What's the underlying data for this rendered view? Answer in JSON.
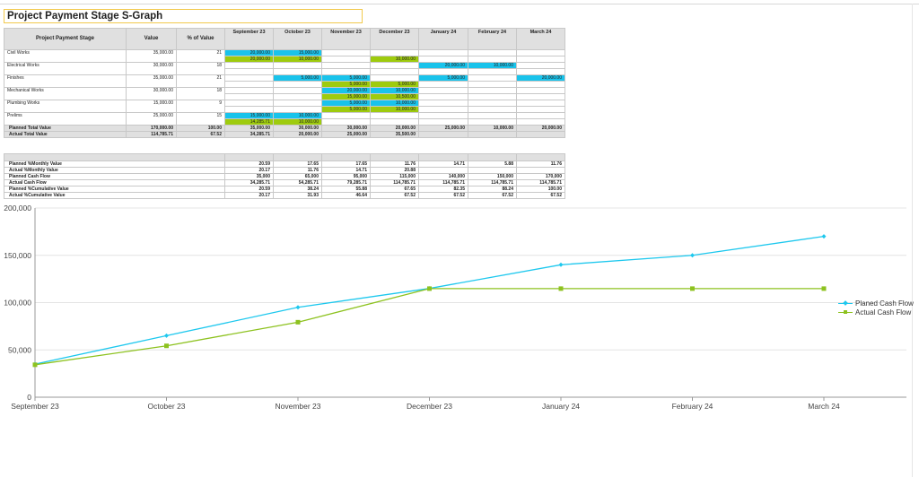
{
  "title": "Project Payment Stage S-Graph",
  "table": {
    "headers": {
      "stage": "Project Payment Stage",
      "value": "Value",
      "percent": "% of Value"
    },
    "months": [
      "September 23",
      "October 23",
      "November 23",
      "December 23",
      "January 24",
      "February 24",
      "March 24"
    ],
    "rows": [
      {
        "name": "Civil Works",
        "value": "35,000.00",
        "percent": "21",
        "planned": [
          {
            "c": "c",
            "t": "20,000.00"
          },
          {
            "c": "c",
            "t": "15,000.00"
          },
          {
            "c": "",
            "t": ""
          },
          {
            "c": "",
            "t": ""
          },
          {
            "c": "",
            "t": ""
          },
          {
            "c": "",
            "t": ""
          },
          {
            "c": "",
            "t": ""
          }
        ],
        "actual": [
          {
            "c": "g",
            "t": "20,000.00"
          },
          {
            "c": "g",
            "t": "10,000.00"
          },
          {
            "c": "",
            "t": ""
          },
          {
            "c": "g",
            "t": "10,000.00"
          },
          {
            "c": "",
            "t": ""
          },
          {
            "c": "",
            "t": ""
          },
          {
            "c": "",
            "t": ""
          }
        ]
      },
      {
        "name": "Electrical Works",
        "value": "30,000.00",
        "percent": "18",
        "planned": [
          {
            "c": "",
            "t": ""
          },
          {
            "c": "",
            "t": ""
          },
          {
            "c": "",
            "t": ""
          },
          {
            "c": "",
            "t": ""
          },
          {
            "c": "c",
            "t": "20,000.00"
          },
          {
            "c": "c",
            "t": "10,000.00"
          },
          {
            "c": "",
            "t": ""
          }
        ],
        "actual": [
          {
            "c": "",
            "t": ""
          },
          {
            "c": "",
            "t": ""
          },
          {
            "c": "",
            "t": ""
          },
          {
            "c": "",
            "t": ""
          },
          {
            "c": "",
            "t": ""
          },
          {
            "c": "",
            "t": ""
          },
          {
            "c": "",
            "t": ""
          }
        ]
      },
      {
        "name": "Finishes",
        "value": "35,000.00",
        "percent": "21",
        "planned": [
          {
            "c": "",
            "t": ""
          },
          {
            "c": "c",
            "t": "5,000.00"
          },
          {
            "c": "c",
            "t": "5,000.00"
          },
          {
            "c": "",
            "t": ""
          },
          {
            "c": "c",
            "t": "5,000.00"
          },
          {
            "c": "",
            "t": ""
          },
          {
            "c": "c",
            "t": "20,000.00"
          }
        ],
        "actual": [
          {
            "c": "",
            "t": ""
          },
          {
            "c": "",
            "t": ""
          },
          {
            "c": "g",
            "t": "5,000.00"
          },
          {
            "c": "g",
            "t": "5,000.00"
          },
          {
            "c": "",
            "t": ""
          },
          {
            "c": "",
            "t": ""
          },
          {
            "c": "",
            "t": ""
          }
        ]
      },
      {
        "name": "Mechanical Works",
        "value": "30,000.00",
        "percent": "18",
        "planned": [
          {
            "c": "",
            "t": ""
          },
          {
            "c": "",
            "t": ""
          },
          {
            "c": "c",
            "t": "20,000.00"
          },
          {
            "c": "c",
            "t": "10,000.00"
          },
          {
            "c": "",
            "t": ""
          },
          {
            "c": "",
            "t": ""
          },
          {
            "c": "",
            "t": ""
          }
        ],
        "actual": [
          {
            "c": "",
            "t": ""
          },
          {
            "c": "",
            "t": ""
          },
          {
            "c": "g",
            "t": "15,000.00"
          },
          {
            "c": "g",
            "t": "10,500.00"
          },
          {
            "c": "",
            "t": ""
          },
          {
            "c": "",
            "t": ""
          },
          {
            "c": "",
            "t": ""
          }
        ]
      },
      {
        "name": "Plumbing Works",
        "value": "15,000.00",
        "percent": "9",
        "planned": [
          {
            "c": "",
            "t": ""
          },
          {
            "c": "",
            "t": ""
          },
          {
            "c": "c",
            "t": "5,000.00"
          },
          {
            "c": "c",
            "t": "10,000.00"
          },
          {
            "c": "",
            "t": ""
          },
          {
            "c": "",
            "t": ""
          },
          {
            "c": "",
            "t": ""
          }
        ],
        "actual": [
          {
            "c": "",
            "t": ""
          },
          {
            "c": "",
            "t": ""
          },
          {
            "c": "g",
            "t": "5,000.00"
          },
          {
            "c": "g",
            "t": "10,000.00"
          },
          {
            "c": "",
            "t": ""
          },
          {
            "c": "",
            "t": ""
          },
          {
            "c": "",
            "t": ""
          }
        ]
      },
      {
        "name": "Prelims",
        "value": "25,000.00",
        "percent": "15",
        "planned": [
          {
            "c": "c",
            "t": "15,000.00"
          },
          {
            "c": "c",
            "t": "10,000.00"
          },
          {
            "c": "",
            "t": ""
          },
          {
            "c": "",
            "t": ""
          },
          {
            "c": "",
            "t": ""
          },
          {
            "c": "",
            "t": ""
          },
          {
            "c": "",
            "t": ""
          }
        ],
        "actual": [
          {
            "c": "g",
            "t": "14,285.71"
          },
          {
            "c": "g",
            "t": "10,000.00"
          },
          {
            "c": "",
            "t": ""
          },
          {
            "c": "",
            "t": ""
          },
          {
            "c": "",
            "t": ""
          },
          {
            "c": "",
            "t": ""
          },
          {
            "c": "",
            "t": ""
          }
        ]
      }
    ],
    "totals": [
      {
        "label": "Planned Total Value",
        "value": "170,000.00",
        "percent": "100.00",
        "months": [
          "35,000.00",
          "30,000.00",
          "30,000.00",
          "20,000.00",
          "25,000.00",
          "10,000.00",
          "20,000.00"
        ]
      },
      {
        "label": "Actual Total Value",
        "value": "114,785.71",
        "percent": "67.52",
        "months": [
          "34,285.71",
          "20,000.00",
          "25,000.00",
          "35,500.00",
          "",
          "",
          ""
        ]
      }
    ]
  },
  "summary": [
    {
      "label": "Planned %Monthly Value",
      "values": [
        "20.59",
        "17.65",
        "17.65",
        "11.76",
        "14.71",
        "5.88",
        "11.76"
      ]
    },
    {
      "label": "Actual %Monthly Value",
      "values": [
        "20.17",
        "11.76",
        "14.71",
        "20.88",
        "",
        "",
        ""
      ]
    },
    {
      "label": "Planned Cash Flow",
      "values": [
        "35,000",
        "65,000",
        "95,000",
        "115,000",
        "140,000",
        "150,000",
        "170,000"
      ]
    },
    {
      "label": "Actual Cash Flow",
      "values": [
        "34,285.71",
        "54,285.71",
        "79,285.71",
        "114,785.71",
        "114,785.71",
        "114,785.71",
        "114,785.71"
      ]
    },
    {
      "label": "Planned %Cumulative Value",
      "values": [
        "20.59",
        "38.24",
        "55.88",
        "67.65",
        "82.35",
        "88.24",
        "100.00"
      ]
    },
    {
      "label": "Actual %Cumulative Value",
      "values": [
        "20.17",
        "31.93",
        "46.64",
        "67.52",
        "67.52",
        "67.52",
        "67.52"
      ]
    }
  ],
  "chart_data": {
    "type": "line",
    "categories": [
      "September 23",
      "October 23",
      "November 23",
      "December 23",
      "January 24",
      "February 24",
      "March 24"
    ],
    "series": [
      {
        "name": "Planed Cash Flow",
        "color": "#1ec8ee",
        "values": [
          35000,
          65000,
          95000,
          115000,
          140000,
          150000,
          170000
        ]
      },
      {
        "name": "Actual Cash Flow",
        "color": "#8dc21f",
        "values": [
          34285.71,
          54285.71,
          79285.71,
          114785.71,
          114785.71,
          114785.71,
          114785.71
        ]
      }
    ],
    "ylim": [
      0,
      200000
    ],
    "yticks": [
      "0",
      "50,000",
      "100,000",
      "150,000",
      "200,000"
    ],
    "grid": true,
    "legend": "right"
  }
}
